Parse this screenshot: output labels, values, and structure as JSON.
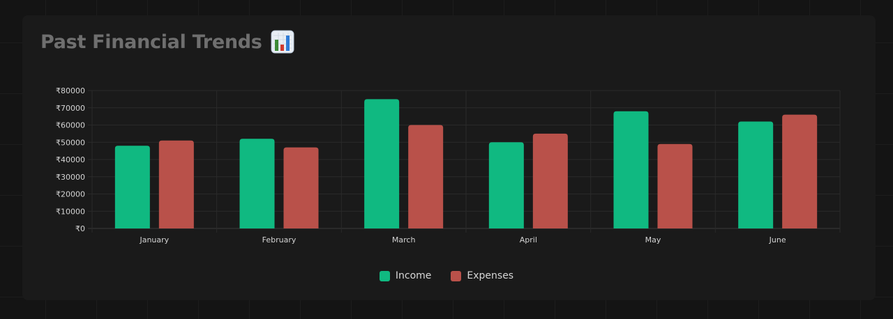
{
  "card": {
    "title": "Past Financial Trends",
    "title_icon": "bar-chart-emoji-icon"
  },
  "chart_data": {
    "type": "bar",
    "title": "",
    "categories": [
      "January",
      "February",
      "March",
      "April",
      "May",
      "June"
    ],
    "series": [
      {
        "name": "Income",
        "color": "#10b981",
        "values": [
          48000,
          52000,
          75000,
          50000,
          68000,
          62000
        ]
      },
      {
        "name": "Expenses",
        "color": "#b9514a",
        "values": [
          51000,
          47000,
          60000,
          55000,
          49000,
          66000
        ]
      }
    ],
    "ylim": [
      0,
      80000
    ],
    "yticks": [
      "₹0",
      "₹10000",
      "₹20000",
      "₹30000",
      "₹40000",
      "₹50000",
      "₹60000",
      "₹70000",
      "₹80000"
    ],
    "xlabel": "",
    "ylabel": "",
    "grid": true,
    "legend_position": "bottom-center"
  }
}
